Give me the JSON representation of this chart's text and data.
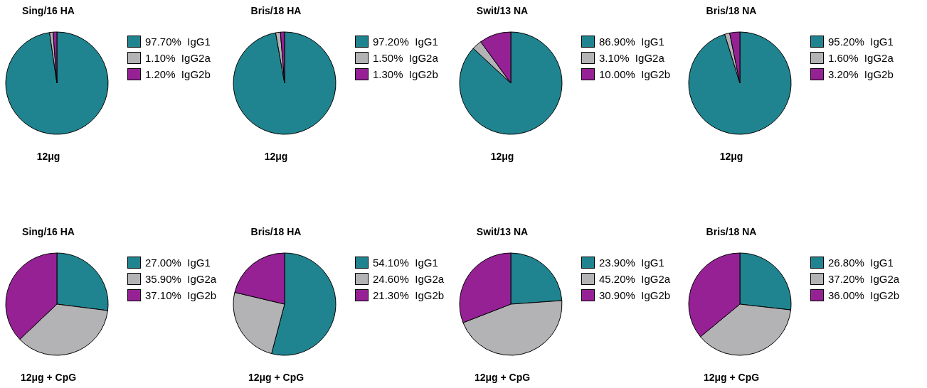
{
  "chart_data": [
    {
      "type": "pie",
      "title": "Sing/16 HA",
      "xlabel": "12μg",
      "categories": [
        "IgG1",
        "IgG2a",
        "IgG2b"
      ],
      "values": [
        97.7,
        1.1,
        1.2
      ],
      "value_labels": [
        "97.70%",
        "1.10%",
        "1.20%"
      ],
      "colors": [
        "#1f8490",
        "#b3b3b5",
        "#952195"
      ],
      "legend": "right"
    },
    {
      "type": "pie",
      "title": "Bris/18 HA",
      "xlabel": "12μg",
      "categories": [
        "IgG1",
        "IgG2a",
        "IgG2b"
      ],
      "values": [
        97.2,
        1.5,
        1.3
      ],
      "value_labels": [
        "97.20%",
        "1.50%",
        "1.30%"
      ],
      "colors": [
        "#1f8490",
        "#b3b3b5",
        "#952195"
      ],
      "legend": "right"
    },
    {
      "type": "pie",
      "title": "Swit/13 NA",
      "xlabel": "12μg",
      "categories": [
        "IgG1",
        "IgG2a",
        "IgG2b"
      ],
      "values": [
        86.9,
        3.1,
        10.0
      ],
      "value_labels": [
        "86.90%",
        "3.10%",
        "10.00%"
      ],
      "colors": [
        "#1f8490",
        "#b3b3b5",
        "#952195"
      ],
      "legend": "right"
    },
    {
      "type": "pie",
      "title": "Bris/18 NA",
      "xlabel": "12μg",
      "categories": [
        "IgG1",
        "IgG2a",
        "IgG2b"
      ],
      "values": [
        95.2,
        1.6,
        3.2
      ],
      "value_labels": [
        "95.20%",
        "1.60%",
        "3.20%"
      ],
      "colors": [
        "#1f8490",
        "#b3b3b5",
        "#952195"
      ],
      "legend": "right"
    },
    {
      "type": "pie",
      "title": "Sing/16 HA",
      "xlabel": "12μg + CpG",
      "categories": [
        "IgG1",
        "IgG2a",
        "IgG2b"
      ],
      "values": [
        27.0,
        35.9,
        37.1
      ],
      "value_labels": [
        "27.00%",
        "35.90%",
        "37.10%"
      ],
      "colors": [
        "#1f8490",
        "#b3b3b5",
        "#952195"
      ],
      "legend": "right"
    },
    {
      "type": "pie",
      "title": "Bris/18 HA",
      "xlabel": "12μg + CpG",
      "categories": [
        "IgG1",
        "IgG2a",
        "IgG2b"
      ],
      "values": [
        54.1,
        24.6,
        21.3
      ],
      "value_labels": [
        "54.10%",
        "24.60%",
        "21.30%"
      ],
      "colors": [
        "#1f8490",
        "#b3b3b5",
        "#952195"
      ],
      "legend": "right"
    },
    {
      "type": "pie",
      "title": "Swit/13 NA",
      "xlabel": "12μg + CpG",
      "categories": [
        "IgG1",
        "IgG2a",
        "IgG2b"
      ],
      "values": [
        23.9,
        45.2,
        30.9
      ],
      "value_labels": [
        "23.90%",
        "45.20%",
        "30.90%"
      ],
      "colors": [
        "#1f8490",
        "#b3b3b5",
        "#952195"
      ],
      "legend": "right"
    },
    {
      "type": "pie",
      "title": "Bris/18 NA",
      "xlabel": "12μg + CpG",
      "categories": [
        "IgG1",
        "IgG2a",
        "IgG2b"
      ],
      "values": [
        26.8,
        37.2,
        36.0
      ],
      "value_labels": [
        "26.80%",
        "37.20%",
        "36.00%"
      ],
      "colors": [
        "#1f8490",
        "#b3b3b5",
        "#952195"
      ],
      "legend": "right"
    }
  ]
}
